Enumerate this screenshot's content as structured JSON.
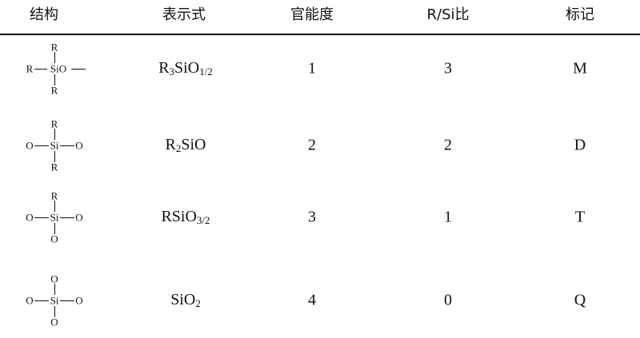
{
  "headers": [
    "结构",
    "表示式",
    "官能度",
    "R/Si比",
    "标记"
  ],
  "rows": [
    {
      "structure": {
        "top": "R",
        "left": "R",
        "center": "SiO",
        "right": "",
        "bottom": "R"
      },
      "formula": [
        {
          "t": "R"
        },
        {
          "s": "3"
        },
        {
          "t": "SiO"
        },
        {
          "s": "1/2"
        }
      ],
      "functionality": "1",
      "ratio": "3",
      "label": "M"
    },
    {
      "structure": {
        "top": "R",
        "left": "O",
        "center": "Si",
        "right": "O",
        "bottom": "R"
      },
      "formula": [
        {
          "t": "R"
        },
        {
          "s": "2"
        },
        {
          "t": "SiO"
        }
      ],
      "functionality": "2",
      "ratio": "2",
      "label": "D"
    },
    {
      "structure": {
        "top": "R",
        "left": "O",
        "center": "Si",
        "right": "O",
        "bottom": "O"
      },
      "formula": [
        {
          "t": "RSiO"
        },
        {
          "s": "3/2"
        }
      ],
      "functionality": "3",
      "ratio": "1",
      "label": "T"
    },
    {
      "structure": {
        "top": "O",
        "left": "O",
        "center": "Si",
        "right": "O",
        "bottom": "O"
      },
      "formula": [
        {
          "t": "SiO"
        },
        {
          "s": "2"
        }
      ],
      "functionality": "4",
      "ratio": "0",
      "label": "Q"
    }
  ]
}
